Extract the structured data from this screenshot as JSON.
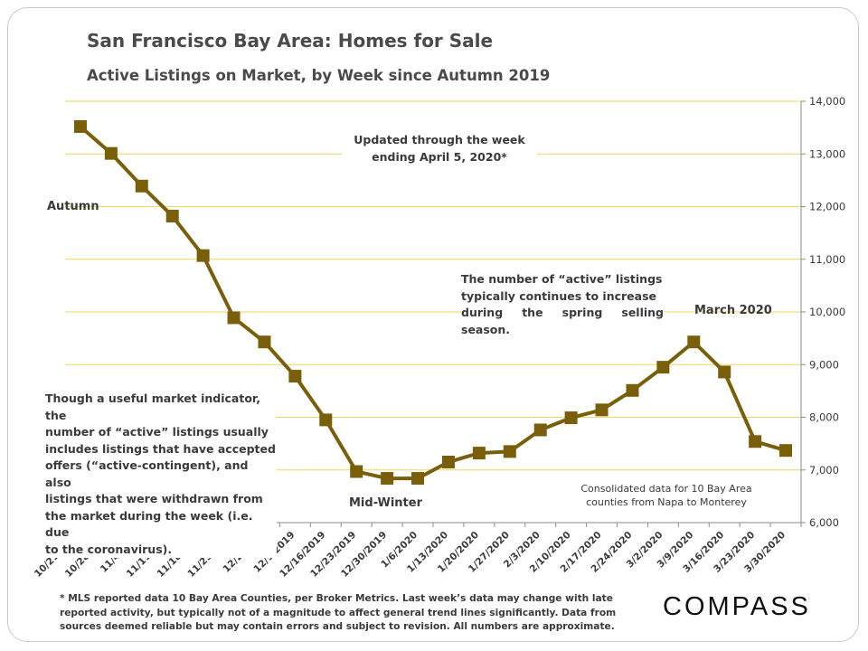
{
  "chart_data": {
    "type": "line",
    "title": "San Francisco Bay Area: Homes for Sale",
    "subtitle": "Active Listings on Market, by Week since Autumn 2019",
    "categories": [
      "10/21/2019",
      "10/28/2019",
      "11/4/2019",
      "11/11/2019",
      "11/18/2019",
      "11/25/2019",
      "12/2/2019",
      "12/9/2019",
      "12/16/2019",
      "12/23/2019",
      "12/30/2019",
      "1/6/2020",
      "1/13/2020",
      "1/20/2020",
      "1/27/2020",
      "2/3/2020",
      "2/10/2020",
      "2/17/2020",
      "2/24/2020",
      "3/2/2020",
      "3/9/2020",
      "3/16/2020",
      "3/23/2020",
      "3/30/2020"
    ],
    "series": [
      {
        "values": [
          13520,
          13010,
          12390,
          11820,
          11070,
          9890,
          9430,
          8780,
          7950,
          6970,
          6840,
          6840,
          7150,
          7320,
          7350,
          7760,
          7990,
          8140,
          8510,
          8950,
          9430,
          8860,
          7540,
          7370
        ],
        "color": "#7a5f0a"
      }
    ],
    "ylim": [
      6000,
      14000
    ],
    "yticks": [
      6000,
      7000,
      8000,
      9000,
      10000,
      11000,
      12000,
      13000,
      14000
    ],
    "ytick_labels": [
      "6,000",
      "7,000",
      "8,000",
      "9,000",
      "10,000",
      "11,000",
      "12,000",
      "13,000",
      "14,000"
    ],
    "y_axis_side": "right",
    "grid": true,
    "grid_color": "#f0d65a",
    "marker": "square",
    "annotations": {
      "updated": "Updated through the week ending April 5, 2020*",
      "updated_line1": "Updated through the week",
      "updated_line2": "ending April 5, 2020*",
      "autumn": "Autumn",
      "mid_winter": "Mid-Winter",
      "march": "March 2020",
      "spring": [
        "The number of “active” listings",
        "typically continues to increase",
        "during the spring selling season."
      ],
      "indicator": [
        "Though a useful market indicator, the",
        "number of “active” listings usually",
        "includes listings that have accepted",
        "offers (“active-contingent), and also",
        "listings that were withdrawn from",
        "the market during the week (i.e. due",
        "to the coronavirus)."
      ],
      "consolidated": [
        "Consolidated data for 10 Bay Area",
        "counties from Napa to Monterey"
      ]
    }
  },
  "footnote": "* MLS reported data 10 Bay Area Counties, per Broker Metrics. Last week’s data may change with late reported activity, but typically not of a magnitude to affect general trend lines significantly. Data from sources deemed reliable but may contain errors and subject to revision. All numbers are approximate.",
  "logo": "COMPASS"
}
